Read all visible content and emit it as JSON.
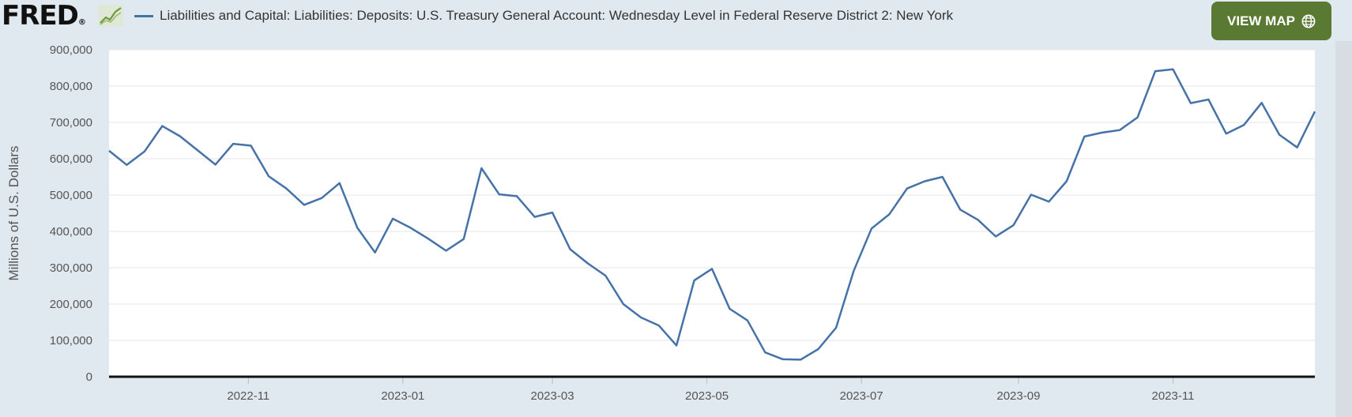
{
  "header": {
    "logo_text": "FRED",
    "logo_mark": "®",
    "logo_icon": "line-chart-icon",
    "title": "Liabilities and Capital: Liabilities: Deposits: U.S. Treasury General Account: Wednesday Level in Federal Reserve District 2: New York",
    "view_map_label": "VIEW MAP",
    "view_map_icon": "globe-icon"
  },
  "colors": {
    "background": "#e1e9f0",
    "series": "#4572a7",
    "button": "#5a7a34",
    "plot": "#ffffff"
  },
  "chart_data": {
    "type": "line",
    "title": "Liabilities and Capital: Liabilities: Deposits: U.S. Treasury General Account: Wednesday Level in Federal Reserve District 2: New York",
    "xlabel": "",
    "ylabel": "Millions of U.S. Dollars",
    "ylim": [
      0,
      900000
    ],
    "xlim": [
      "2022-09-07",
      "2023-12-27"
    ],
    "grid": true,
    "legend": "top-left",
    "y_ticks": [
      0,
      100000,
      200000,
      300000,
      400000,
      500000,
      600000,
      700000,
      800000,
      900000
    ],
    "y_tick_labels": [
      "0",
      "100,000",
      "200,000",
      "300,000",
      "400,000",
      "500,000",
      "600,000",
      "700,000",
      "800,000",
      "900,000"
    ],
    "x_ticks": [
      "2022-11-01",
      "2023-01-01",
      "2023-03-01",
      "2023-05-01",
      "2023-07-01",
      "2023-09-01",
      "2023-11-01"
    ],
    "x_tick_labels": [
      "2022-11",
      "2023-01",
      "2023-03",
      "2023-05",
      "2023-07",
      "2023-09",
      "2023-11"
    ],
    "series": [
      {
        "name": "Liabilities and Capital: Liabilities: Deposits: U.S. Treasury General Account: Wednesday Level in Federal Reserve District 2: New York",
        "x": [
          "2022-09-07",
          "2022-09-14",
          "2022-09-21",
          "2022-09-28",
          "2022-10-05",
          "2022-10-12",
          "2022-10-19",
          "2022-10-26",
          "2022-11-02",
          "2022-11-09",
          "2022-11-16",
          "2022-11-23",
          "2022-11-30",
          "2022-12-07",
          "2022-12-14",
          "2022-12-21",
          "2022-12-28",
          "2023-01-04",
          "2023-01-11",
          "2023-01-18",
          "2023-01-25",
          "2023-02-01",
          "2023-02-08",
          "2023-02-15",
          "2023-02-22",
          "2023-03-01",
          "2023-03-08",
          "2023-03-15",
          "2023-03-22",
          "2023-03-29",
          "2023-04-05",
          "2023-04-12",
          "2023-04-19",
          "2023-04-26",
          "2023-05-03",
          "2023-05-10",
          "2023-05-17",
          "2023-05-24",
          "2023-05-31",
          "2023-06-07",
          "2023-06-14",
          "2023-06-21",
          "2023-06-28",
          "2023-07-05",
          "2023-07-12",
          "2023-07-19",
          "2023-07-26",
          "2023-08-02",
          "2023-08-09",
          "2023-08-16",
          "2023-08-23",
          "2023-08-30",
          "2023-09-06",
          "2023-09-13",
          "2023-09-20",
          "2023-09-27",
          "2023-10-04",
          "2023-10-11",
          "2023-10-18",
          "2023-10-25",
          "2023-11-01",
          "2023-11-08",
          "2023-11-15",
          "2023-11-22",
          "2023-11-29",
          "2023-12-06",
          "2023-12-13",
          "2023-12-20",
          "2023-12-27"
        ],
        "values": [
          622000,
          583000,
          620000,
          690000,
          662000,
          623000,
          584000,
          641000,
          636000,
          552000,
          518000,
          473000,
          492000,
          533000,
          410000,
          342000,
          435000,
          410000,
          380000,
          347000,
          379000,
          574000,
          502000,
          497000,
          440000,
          452000,
          351000,
          312000,
          278000,
          200000,
          163000,
          141000,
          86000,
          265000,
          297000,
          187000,
          155000,
          67000,
          48000,
          47000,
          76000,
          135000,
          292000,
          408000,
          447000,
          518000,
          538000,
          550000,
          460000,
          432000,
          386000,
          417000,
          501000,
          482000,
          538000,
          661000,
          672000,
          679000,
          714000,
          841000,
          846000,
          753000,
          763000,
          669000,
          693000,
          754000,
          666000,
          631000,
          730000
        ]
      }
    ]
  }
}
